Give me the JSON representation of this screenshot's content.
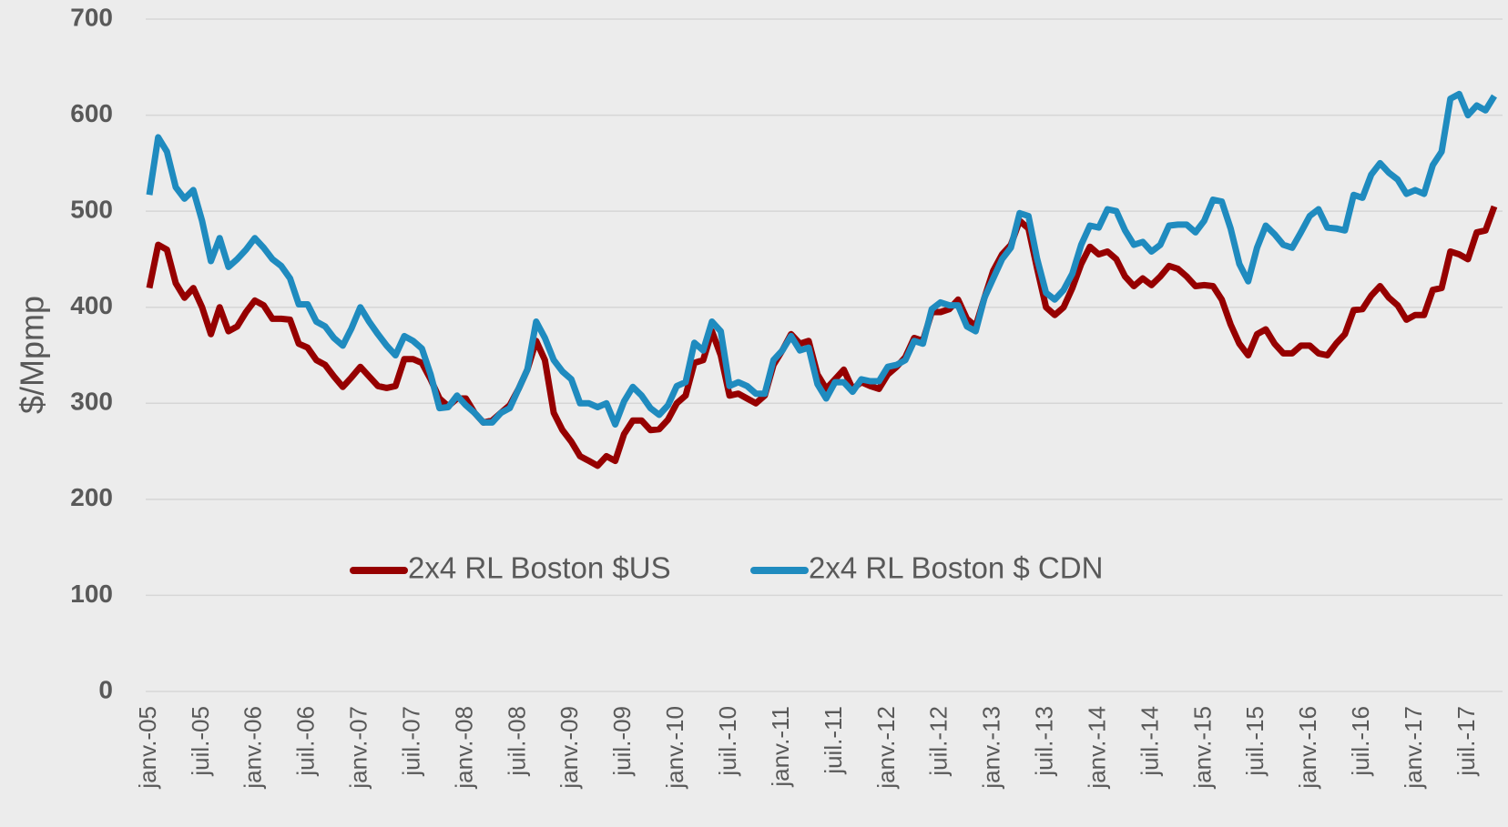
{
  "chart_data": {
    "type": "line",
    "y_label": "$/Mpmp",
    "categories": [
      "janv.-05",
      null,
      null,
      null,
      null,
      null,
      "juil.-05",
      null,
      null,
      null,
      null,
      null,
      "janv.-06",
      null,
      null,
      null,
      null,
      null,
      "juil.-06",
      null,
      null,
      null,
      null,
      null,
      "janv.-07",
      null,
      null,
      null,
      null,
      null,
      "juil.-07",
      null,
      null,
      null,
      null,
      null,
      "janv.-08",
      null,
      null,
      null,
      null,
      null,
      "juil.-08",
      null,
      null,
      null,
      null,
      null,
      "janv.-09",
      null,
      null,
      null,
      null,
      null,
      "juil.-09",
      null,
      null,
      null,
      null,
      null,
      "janv.-10",
      null,
      null,
      null,
      null,
      null,
      "juil.-10",
      null,
      null,
      null,
      null,
      null,
      "janv.-11",
      null,
      null,
      null,
      null,
      null,
      "juil.-11",
      null,
      null,
      null,
      null,
      null,
      "janv.-12",
      null,
      null,
      null,
      null,
      null,
      "juil.-12",
      null,
      null,
      null,
      null,
      null,
      "janv.-13",
      null,
      null,
      null,
      null,
      null,
      "juil.-13",
      null,
      null,
      null,
      null,
      null,
      "janv.-14",
      null,
      null,
      null,
      null,
      null,
      "juil.-14",
      null,
      null,
      null,
      null,
      null,
      "janv.-15",
      null,
      null,
      null,
      null,
      null,
      "juil.-15",
      null,
      null,
      null,
      null,
      null,
      "janv.-16",
      null,
      null,
      null,
      null,
      null,
      "juil.-16",
      null,
      null,
      null,
      null,
      null,
      "janv.-17",
      null,
      null,
      null,
      null,
      null,
      "juil.-17",
      null,
      null,
      null
    ],
    "series": [
      {
        "name": "2x4 RL Boston $US",
        "color": "#960000",
        "values": [
          420,
          465,
          460,
          425,
          410,
          420,
          400,
          372,
          400,
          375,
          380,
          395,
          407,
          402,
          388,
          388,
          387,
          362,
          358,
          345,
          340,
          328,
          317,
          327,
          338,
          328,
          318,
          316,
          318,
          346,
          346,
          342,
          325,
          305,
          297,
          305,
          305,
          290,
          280,
          282,
          290,
          298,
          315,
          335,
          365,
          345,
          290,
          272,
          260,
          245,
          240,
          235,
          245,
          240,
          268,
          282,
          282,
          272,
          273,
          283,
          300,
          308,
          342,
          345,
          375,
          350,
          308,
          310,
          305,
          300,
          308,
          340,
          355,
          372,
          362,
          365,
          330,
          315,
          325,
          335,
          315,
          322,
          318,
          315,
          330,
          338,
          348,
          368,
          365,
          395,
          395,
          398,
          408,
          388,
          380,
          410,
          438,
          455,
          465,
          490,
          482,
          440,
          400,
          392,
          400,
          420,
          445,
          463,
          455,
          458,
          450,
          432,
          422,
          430,
          423,
          432,
          443,
          440,
          432,
          422,
          423,
          422,
          408,
          382,
          362,
          350,
          372,
          377,
          362,
          352,
          352,
          360,
          360,
          352,
          350,
          362,
          372,
          397,
          398,
          412,
          422,
          410,
          402,
          387,
          392,
          392,
          418,
          420,
          458,
          455,
          450,
          478,
          480,
          505
        ]
      },
      {
        "name": "2x4 RL Boston $ CDN",
        "color": "#1f8bbf",
        "values": [
          517,
          577,
          562,
          525,
          513,
          522,
          490,
          448,
          472,
          442,
          450,
          460,
          472,
          462,
          450,
          443,
          430,
          403,
          403,
          385,
          380,
          368,
          360,
          378,
          400,
          385,
          372,
          360,
          350,
          370,
          365,
          357,
          330,
          295,
          296,
          308,
          298,
          290,
          280,
          280,
          290,
          295,
          315,
          335,
          385,
          368,
          345,
          333,
          325,
          300,
          300,
          296,
          300,
          278,
          302,
          317,
          308,
          295,
          288,
          298,
          318,
          322,
          363,
          355,
          385,
          375,
          318,
          322,
          318,
          310,
          310,
          345,
          355,
          370,
          355,
          358,
          320,
          305,
          322,
          322,
          312,
          325,
          323,
          323,
          338,
          340,
          345,
          365,
          362,
          398,
          405,
          402,
          402,
          380,
          375,
          410,
          430,
          450,
          462,
          498,
          495,
          450,
          415,
          408,
          418,
          435,
          465,
          485,
          483,
          502,
          500,
          480,
          465,
          468,
          458,
          465,
          485,
          486,
          486,
          478,
          490,
          512,
          510,
          482,
          445,
          427,
          462,
          485,
          476,
          465,
          462,
          478,
          495,
          502,
          483,
          482,
          480,
          517,
          514,
          538,
          550,
          540,
          533,
          518,
          522,
          518,
          548,
          562,
          617,
          622,
          600,
          610,
          605,
          620
        ]
      }
    ],
    "ylim": [
      0,
      700
    ],
    "yticks": [
      0,
      100,
      200,
      300,
      400,
      500,
      600,
      700
    ],
    "grid": true,
    "legend": "inside"
  }
}
